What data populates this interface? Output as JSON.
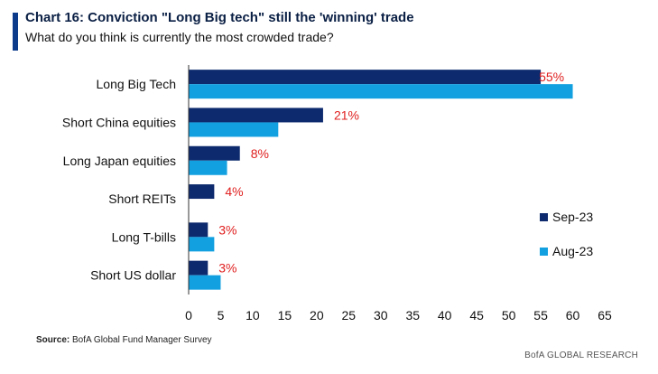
{
  "header": {
    "title": "Chart 16: Conviction \"Long Big tech\" still the 'winning' trade",
    "subtitle": "What do you think is currently the most crowded trade?"
  },
  "footer": {
    "source_label": "Source:",
    "source_text": "BofA Global Fund Manager Survey",
    "brand": "BofA GLOBAL RESEARCH"
  },
  "colors": {
    "sep": "#0d2a6e",
    "aug": "#12a0e0",
    "label_red": "#e02020"
  },
  "chart_data": {
    "type": "bar",
    "orientation": "horizontal",
    "categories": [
      "Long Big Tech",
      "Short China equities",
      "Long Japan equities",
      "Short REITs",
      "Long T-bills",
      "Short US dollar"
    ],
    "series": [
      {
        "name": "Sep-23",
        "values": [
          55,
          21,
          8,
          4,
          3,
          3
        ],
        "data_labels": [
          "55%",
          "21%",
          "8%",
          "4%",
          "3%",
          "3%"
        ]
      },
      {
        "name": "Aug-23",
        "values": [
          60,
          14,
          6,
          0,
          4,
          5
        ]
      }
    ],
    "xlim": [
      0,
      65
    ],
    "xticks": [
      "0",
      "5",
      "10",
      "15",
      "20",
      "25",
      "30",
      "35",
      "40",
      "45",
      "50",
      "55",
      "60",
      "65"
    ],
    "legend_position": "right",
    "grid": false
  }
}
